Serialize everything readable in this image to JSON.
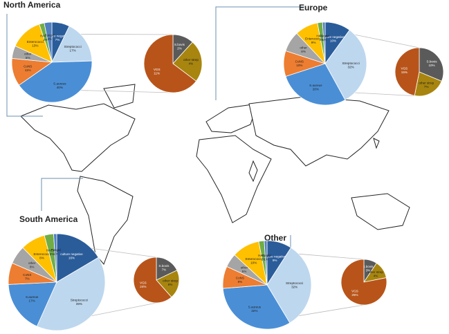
{
  "chart_data": [
    {
      "type": "pie",
      "title": "North America",
      "categories": [
        "culture negative",
        "Streptococci",
        "S.aureus",
        "CoNS",
        "other",
        "Enterococci",
        "HACEK",
        "Fungal"
      ],
      "values": [
        7,
        17,
        40,
        11,
        5,
        13,
        2,
        3
      ],
      "value_labels": [
        "7%",
        "17%",
        "40%",
        "11%",
        "5%",
        "13%",
        "2%",
        "3%"
      ],
      "colors": [
        "#2a5c9a",
        "#bdd7ee",
        "#4a8fd6",
        "#ed7d31",
        "#a5a5a5",
        "#ffc000",
        "#70ad47",
        "#4f7fbf"
      ],
      "sub": {
        "categories": [
          "S.bovis",
          "other strep",
          "VGS"
        ],
        "values": [
          2,
          4,
          11
        ],
        "value_labels": [
          "2%",
          "4%",
          "11%"
        ],
        "colors": [
          "#5a5a5a",
          "#a8850e",
          "#b8541a"
        ]
      }
    },
    {
      "type": "pie",
      "title": "Europe",
      "categories": [
        "culture negative",
        "Streptococci",
        "S.aureus",
        "CoNS",
        "other",
        "Enterococci",
        "HACEK",
        "Fungal"
      ],
      "values": [
        10,
        32,
        28,
        10,
        8,
        9,
        2,
        1
      ],
      "value_labels": [
        "10%",
        "32%",
        "28%",
        "10%",
        "8%",
        "9%",
        "2%",
        "1%"
      ],
      "colors": [
        "#2a5c9a",
        "#bdd7ee",
        "#4a8fd6",
        "#ed7d31",
        "#a5a5a5",
        "#ffc000",
        "#70ad47",
        "#4f7fbf"
      ],
      "sub": {
        "categories": [
          "S.bovis",
          "other strep",
          "VGS"
        ],
        "values": [
          10,
          7,
          15
        ],
        "value_labels": [
          "10%",
          "7%",
          "15%"
        ],
        "colors": [
          "#5a5a5a",
          "#a8850e",
          "#b8541a"
        ]
      }
    },
    {
      "type": "pie",
      "title": "South America",
      "categories": [
        "culture negative",
        "Streptococci",
        "S.aureus",
        "CoNS",
        "other",
        "Enterococci",
        "HACEK",
        "Fungal"
      ],
      "values": [
        16,
        39,
        17,
        7,
        6,
        8,
        3,
        1
      ],
      "value_labels": [
        "16%",
        "39%",
        "17%",
        "7%",
        "6%",
        "8%",
        "3%",
        "1%"
      ],
      "colors": [
        "#2a5c9a",
        "#bdd7ee",
        "#4a8fd6",
        "#ed7d31",
        "#a5a5a5",
        "#ffc000",
        "#70ad47",
        "#4f7fbf"
      ],
      "sub": {
        "categories": [
          "S.bovis",
          "other strep",
          "VGS"
        ],
        "values": [
          7,
          8,
          24
        ],
        "value_labels": [
          "7%",
          "8%",
          "24%"
        ],
        "colors": [
          "#5a5a5a",
          "#a8850e",
          "#b8541a"
        ]
      }
    },
    {
      "type": "pie",
      "title": "Other",
      "categories": [
        "culture negative",
        "Streptococci",
        "S.aureus",
        "CoNS",
        "other",
        "Enterococci",
        "HACEK",
        "Fungal"
      ],
      "values": [
        9,
        32,
        32,
        8,
        5,
        10,
        2,
        1
      ],
      "value_labels": [
        "9%",
        "32%",
        "32%",
        "8%",
        "5%",
        "10%",
        "2%",
        "1%"
      ],
      "colors": [
        "#2a5c9a",
        "#bdd7ee",
        "#4a8fd6",
        "#ed7d31",
        "#a5a5a5",
        "#ffc000",
        "#70ad47",
        "#4f7fbf"
      ],
      "sub": {
        "categories": [
          "S.bovis",
          "other strep",
          "VGS"
        ],
        "values": [
          3,
          4,
          25
        ],
        "value_labels": [
          "3%",
          "4%",
          "25%"
        ],
        "colors": [
          "#5a5a5a",
          "#a8850e",
          "#b8541a"
        ]
      }
    }
  ]
}
